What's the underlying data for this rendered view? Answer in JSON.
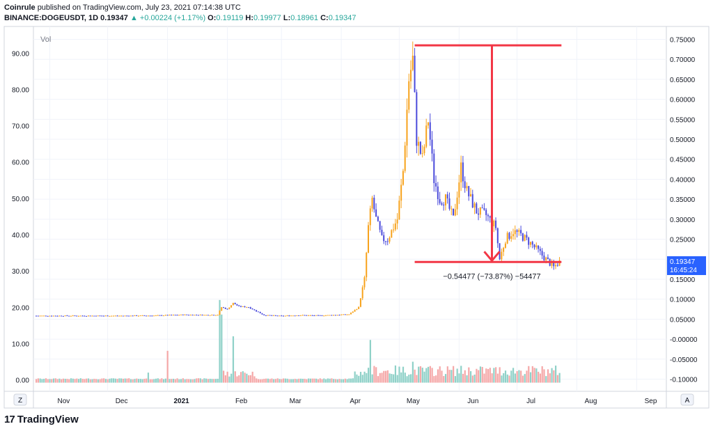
{
  "header": {
    "publisher": "Coinrule",
    "published_text": "published on TradingView.com, July 23, 2021 07:14:38 UTC",
    "symbol": "BINANCE:DOGEUSDT, 1D",
    "last": "0.19347",
    "change_arrow": "▲",
    "change": "+0.00224 (+1.17%)",
    "o_label": "O:",
    "o": "0.19119",
    "h_label": "H:",
    "h": "0.19977",
    "l_label": "L:",
    "l": "0.18961",
    "c_label": "C:",
    "c": "0.19347"
  },
  "brand": {
    "logo_text": "17",
    "name": "TradingView"
  },
  "chart_data": {
    "type": "candlestick",
    "volume_label": "Vol",
    "left_axis": {
      "ticks": [
        "90.00",
        "80.00",
        "70.00",
        "60.00",
        "50.00",
        "40.00",
        "30.00",
        "20.00",
        "10.00",
        "0.00"
      ],
      "range": [
        -2,
        96
      ]
    },
    "right_axis": {
      "ticks": [
        "0.75000",
        "0.70000",
        "0.65000",
        "0.60000",
        "0.55000",
        "0.50000",
        "0.45000",
        "0.40000",
        "0.35000",
        "0.30000",
        "0.25000",
        "0.20000",
        "0.15000",
        "0.10000",
        "0.05000",
        "-0.00000",
        "-0.05000",
        "-0.10000"
      ],
      "range": [
        -0.12,
        0.77
      ]
    },
    "x_ticks": [
      "Nov",
      "Dec",
      "2021",
      "Feb",
      "Mar",
      "Apr",
      "May",
      "Jun",
      "Jul",
      "Aug",
      "Sep"
    ],
    "x_ticks_bold": [
      "2021"
    ],
    "left_corner": "Z",
    "right_corner": "A",
    "price_badge": {
      "price": "0.19347",
      "countdown": "16:45:24",
      "color": "#2962ff"
    },
    "measure": {
      "top_price": 0.735,
      "bottom_price": 0.193,
      "label": "−0.54477 (−73.87%) −54477",
      "color": "#f23645"
    },
    "up_color": "#f7a21b",
    "down_color": "#4a4adb",
    "vol_up_color": "#8fd1c8",
    "vol_down_color": "#f5a8a8",
    "price_path": [
      [
        "2020-10-25",
        0.0585
      ],
      [
        "2020-11-15",
        0.0585
      ],
      [
        "2020-12-10",
        0.0585
      ],
      [
        "2020-12-25",
        0.059
      ],
      [
        "2021-01-01",
        0.06
      ],
      [
        "2021-01-10",
        0.061
      ],
      [
        "2021-01-20",
        0.0605
      ],
      [
        "2021-01-27",
        0.061
      ],
      [
        "2021-01-29",
        0.08
      ],
      [
        "2021-02-01",
        0.075
      ],
      [
        "2021-02-04",
        0.09
      ],
      [
        "2021-02-07",
        0.082
      ],
      [
        "2021-02-12",
        0.08
      ],
      [
        "2021-02-20",
        0.06
      ],
      [
        "2021-03-01",
        0.058
      ],
      [
        "2021-03-10",
        0.06
      ],
      [
        "2021-03-20",
        0.059
      ],
      [
        "2021-03-31",
        0.061
      ],
      [
        "2021-04-05",
        0.062
      ],
      [
        "2021-04-10",
        0.08
      ],
      [
        "2021-04-13",
        0.15
      ],
      [
        "2021-04-15",
        0.28
      ],
      [
        "2021-04-17",
        0.35
      ],
      [
        "2021-04-19",
        0.3
      ],
      [
        "2021-04-22",
        0.25
      ],
      [
        "2021-04-25",
        0.25
      ],
      [
        "2021-04-30",
        0.3
      ],
      [
        "2021-05-03",
        0.42
      ],
      [
        "2021-05-06",
        0.65
      ],
      [
        "2021-05-08",
        0.7
      ],
      [
        "2021-05-10",
        0.5
      ],
      [
        "2021-05-13",
        0.45
      ],
      [
        "2021-05-16",
        0.55
      ],
      [
        "2021-05-19",
        0.4
      ],
      [
        "2021-05-22",
        0.35
      ],
      [
        "2021-05-25",
        0.35
      ],
      [
        "2021-05-29",
        0.3
      ],
      [
        "2021-06-02",
        0.43
      ],
      [
        "2021-06-05",
        0.37
      ],
      [
        "2021-06-10",
        0.32
      ],
      [
        "2021-06-15",
        0.31
      ],
      [
        "2021-06-20",
        0.28
      ],
      [
        "2021-06-22",
        0.2
      ],
      [
        "2021-06-25",
        0.25
      ],
      [
        "2021-06-29",
        0.27
      ],
      [
        "2021-07-03",
        0.26
      ],
      [
        "2021-07-08",
        0.24
      ],
      [
        "2021-07-12",
        0.22
      ],
      [
        "2021-07-16",
        0.2
      ],
      [
        "2021-07-20",
        0.18
      ],
      [
        "2021-07-23",
        0.1935
      ]
    ],
    "volume_peaks": [
      [
        "2021-01-28",
        22
      ],
      [
        "2021-01-29",
        18
      ],
      [
        "2021-02-04",
        12
      ],
      [
        "2021-04-16",
        11
      ],
      [
        "2021-05-08",
        5
      ],
      [
        "2021-01-01",
        8
      ],
      [
        "2020-12-22",
        2
      ]
    ]
  }
}
